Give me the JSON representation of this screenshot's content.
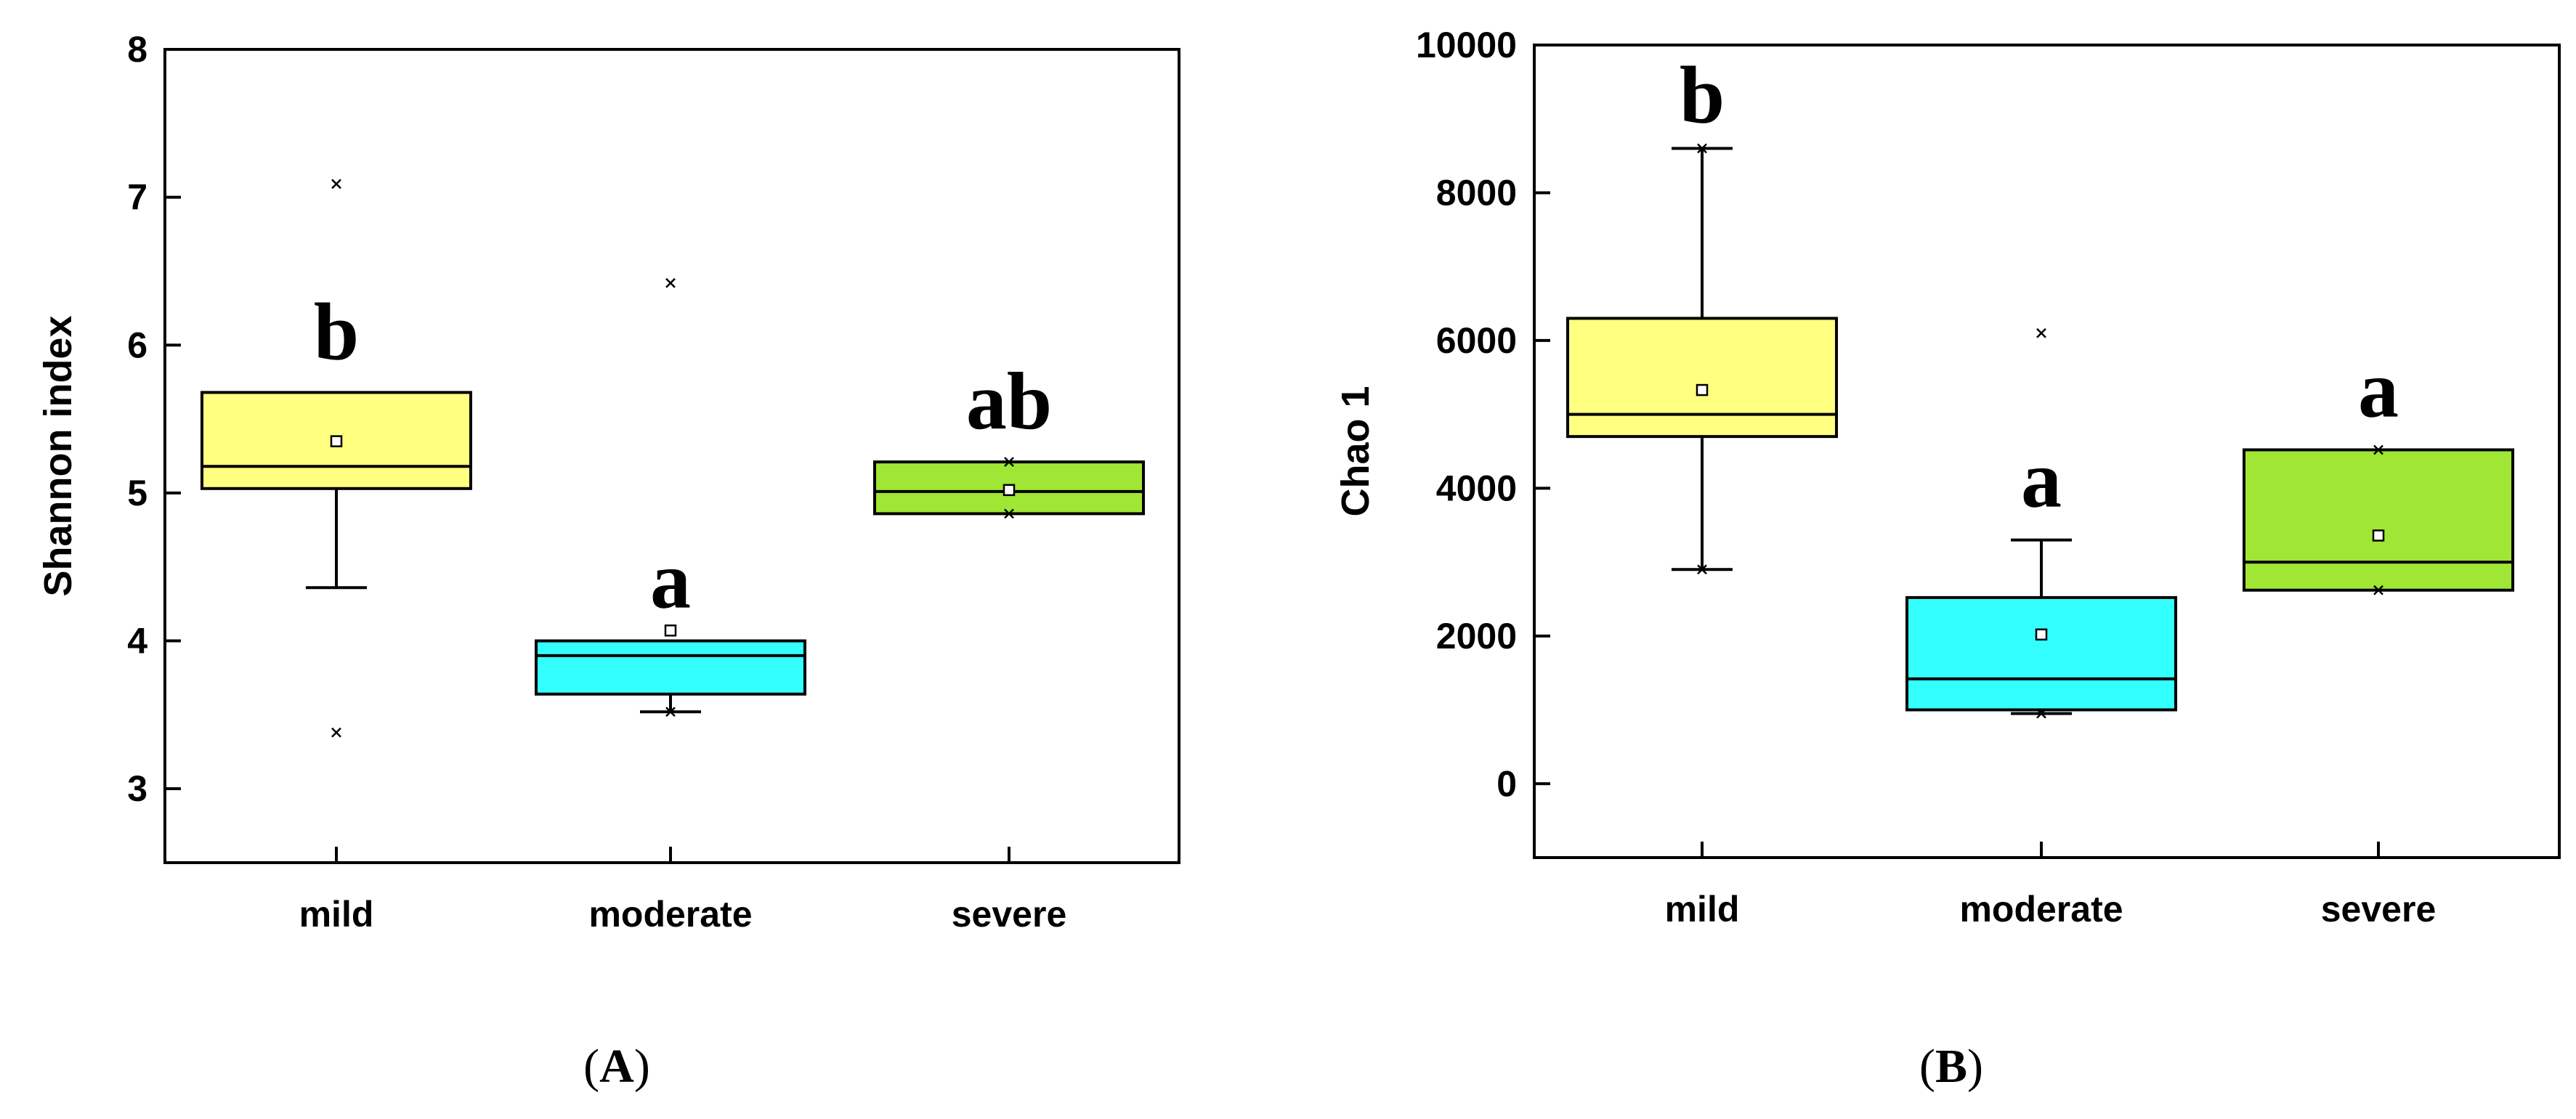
{
  "chart_data": [
    {
      "type": "box",
      "panel_label": "A",
      "ylabel": "Shannon index",
      "xlabel": "",
      "ylim": [
        2.5,
        8
      ],
      "yticks": [
        3,
        4,
        5,
        6,
        7,
        8
      ],
      "grid": false,
      "categories": [
        "mild",
        "moderate",
        "severe"
      ],
      "boxes": [
        {
          "category": "mild",
          "color": "#FFFF80",
          "q1": 5.03,
          "median": 5.18,
          "q3": 5.68,
          "mean": 5.35,
          "whisker_low": 4.36,
          "whisker_high": 5.68,
          "outliers": [
            3.38,
            7.09
          ],
          "extremes": [],
          "sig": "b"
        },
        {
          "category": "moderate",
          "color": "#33FFFF",
          "q1": 3.64,
          "median": 3.9,
          "q3": 4.0,
          "mean": 4.07,
          "whisker_low": 3.52,
          "whisker_high": 4.0,
          "outliers": [
            6.42
          ],
          "extremes": [
            3.52
          ],
          "sig": "a"
        },
        {
          "category": "severe",
          "color": "#A0E634",
          "q1": 4.86,
          "median": 5.01,
          "q3": 5.21,
          "mean": 5.02,
          "whisker_low": 4.86,
          "whisker_high": 5.21,
          "outliers": [],
          "extremes": [
            4.86,
            5.21
          ],
          "sig": "ab"
        }
      ]
    },
    {
      "type": "box",
      "panel_label": "B",
      "ylabel": "Chao 1",
      "xlabel": "",
      "ylim": [
        -1000,
        10000
      ],
      "yticks": [
        0,
        2000,
        4000,
        6000,
        8000,
        10000
      ],
      "grid": false,
      "categories": [
        "mild",
        "moderate",
        "severe"
      ],
      "boxes": [
        {
          "category": "mild",
          "color": "#FFFF80",
          "q1": 4700,
          "median": 5000,
          "q3": 6300,
          "mean": 5330,
          "whisker_low": 2900,
          "whisker_high": 8600,
          "outliers": [],
          "extremes": [
            2900,
            8600
          ],
          "sig": "b"
        },
        {
          "category": "moderate",
          "color": "#33FFFF",
          "q1": 1000,
          "median": 1420,
          "q3": 2520,
          "mean": 2020,
          "whisker_low": 950,
          "whisker_high": 3300,
          "outliers": [
            6100
          ],
          "extremes": [
            950
          ],
          "sig": "a"
        },
        {
          "category": "severe",
          "color": "#A0E634",
          "q1": 2620,
          "median": 3000,
          "q3": 4520,
          "mean": 3360,
          "whisker_low": 2620,
          "whisker_high": 4520,
          "outliers": [],
          "extremes": [
            2620,
            4520
          ],
          "sig": "a"
        }
      ]
    }
  ]
}
